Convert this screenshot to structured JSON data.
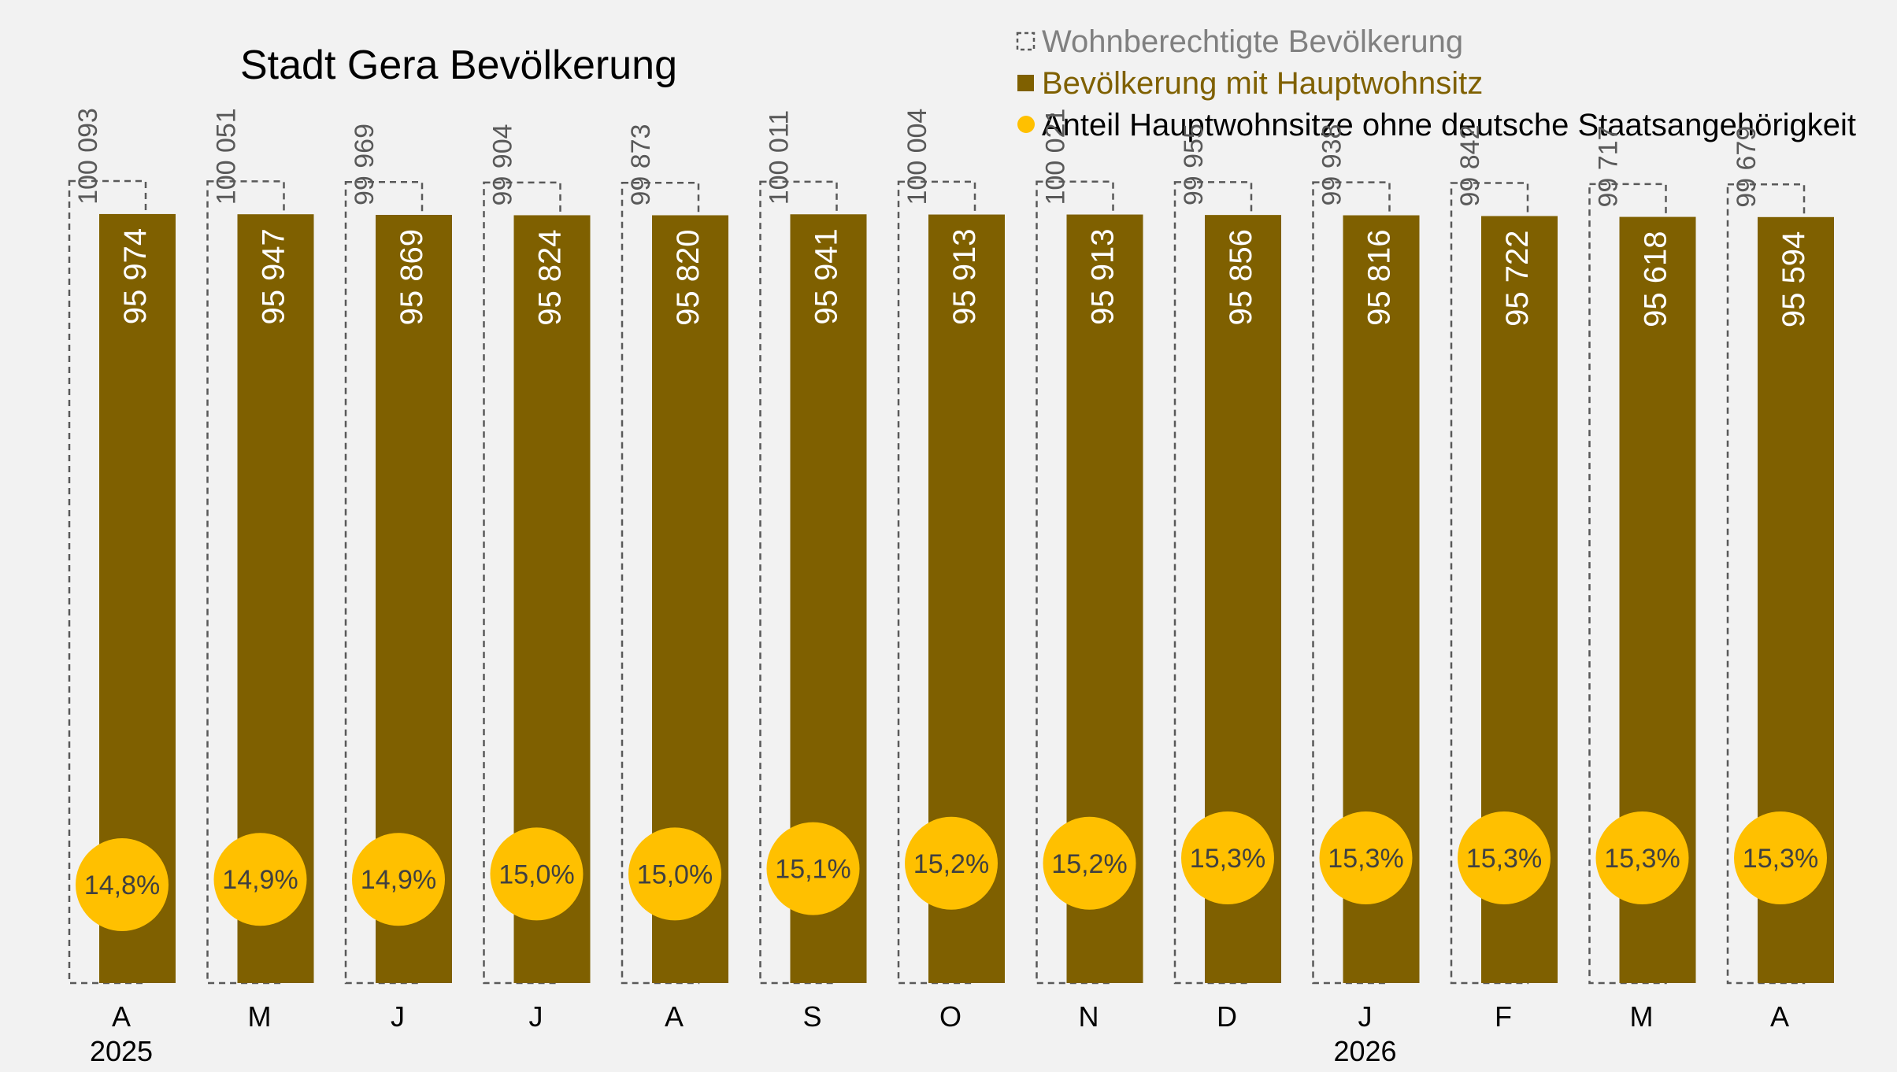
{
  "chart_data": {
    "type": "bar",
    "title": "Stadt Gera Bevölkerung",
    "categories": [
      "A",
      "M",
      "J",
      "J",
      "A",
      "S",
      "O",
      "N",
      "D",
      "J",
      "F",
      "M",
      "A"
    ],
    "year_labels": [
      {
        "index": 0,
        "label": "2025"
      },
      {
        "index": 9,
        "label": "2026"
      }
    ],
    "series": [
      {
        "name": "Wohnberechtigte Bevölkerung",
        "style": "dashed-outline",
        "values": [
          100093,
          100051,
          99969,
          99904,
          99873,
          100011,
          100004,
          100021,
          99955,
          99938,
          99842,
          99717,
          99679
        ],
        "labels": [
          "100 093",
          "100 051",
          "99 969",
          "99 904",
          "99 873",
          "100 011",
          "100 004",
          "100 021",
          "99 955",
          "99 938",
          "99 842",
          "99 717",
          "99 679"
        ]
      },
      {
        "name": "Bevölkerung mit Hauptwohnsitz",
        "style": "solid-bar",
        "values": [
          95974,
          95947,
          95869,
          95824,
          95820,
          95941,
          95913,
          95913,
          95856,
          95816,
          95722,
          95618,
          95594
        ],
        "labels": [
          "95 974",
          "95 947",
          "95 869",
          "95 824",
          "95 820",
          "95 941",
          "95 913",
          "95 913",
          "95 856",
          "95 816",
          "95 722",
          "95 618",
          "95 594"
        ]
      },
      {
        "name": "Anteil Hauptwohnsitze ohne deutsche Staatsangehörigkeit",
        "style": "circle-marker",
        "values": [
          14.8,
          14.9,
          14.9,
          15.0,
          15.0,
          15.1,
          15.2,
          15.2,
          15.3,
          15.3,
          15.3,
          15.3,
          15.3
        ],
        "labels": [
          "14,8%",
          "14,9%",
          "14,9%",
          "15,0%",
          "15,0%",
          "15,1%",
          "15,2%",
          "15,2%",
          "15,3%",
          "15,3%",
          "15,3%",
          "15,3%",
          "15,3%"
        ]
      }
    ],
    "ylim": [
      0,
      100093
    ],
    "share_ylim": [
      14.8,
      15.3
    ],
    "legend_position": "top-right",
    "grid": false
  },
  "colors": {
    "background": "#f2f2f2",
    "main_bar": "#7f6000",
    "outline": "#595959",
    "circle": "#ffc000",
    "legend_text_1": "#808080",
    "legend_text_2": "#7f6000",
    "legend_text_3": "#000000"
  }
}
